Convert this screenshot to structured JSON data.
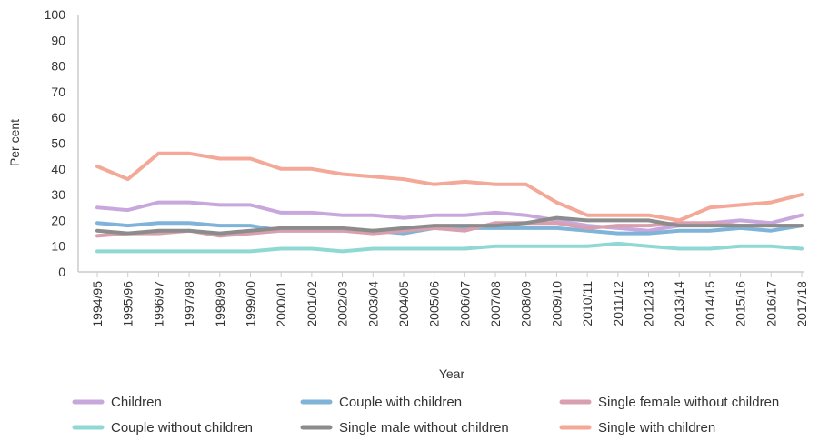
{
  "chart_data": {
    "type": "line",
    "title": "",
    "xlabel": "Year",
    "ylabel": "Per cent",
    "ylim": [
      0,
      100
    ],
    "yticks": [
      0,
      10,
      20,
      30,
      40,
      50,
      60,
      70,
      80,
      90,
      100
    ],
    "grid": false,
    "legend_position": "bottom",
    "categories": [
      "1994/95",
      "1995/96",
      "1996/97",
      "1997/98",
      "1998/99",
      "1999/00",
      "2000/01",
      "2001/02",
      "2002/03",
      "2003/04",
      "2004/05",
      "2005/06",
      "2006/07",
      "2007/08",
      "2008/09",
      "2009/10",
      "2010/11",
      "2011/12",
      "2012/13",
      "2013/14",
      "2014/15",
      "2015/16",
      "2016/17",
      "2017/18"
    ],
    "series": [
      {
        "name": "Children",
        "color": "#c8a8dc",
        "values": [
          25,
          24,
          27,
          27,
          26,
          26,
          23,
          23,
          22,
          22,
          21,
          22,
          22,
          23,
          22,
          20,
          18,
          17,
          16,
          18,
          19,
          20,
          19,
          22
        ]
      },
      {
        "name": "Couple with children",
        "color": "#7fb4d8",
        "values": [
          19,
          18,
          19,
          19,
          18,
          18,
          16,
          16,
          16,
          16,
          15,
          17,
          17,
          17,
          17,
          17,
          16,
          15,
          15,
          16,
          16,
          17,
          16,
          18
        ]
      },
      {
        "name": "Single female without children",
        "color": "#d8a0ae",
        "values": [
          14,
          15,
          15,
          16,
          14,
          15,
          16,
          16,
          16,
          15,
          16,
          17,
          16,
          19,
          19,
          19,
          17,
          18,
          18,
          19,
          19,
          18,
          18,
          18
        ]
      },
      {
        "name": "Couple without children",
        "color": "#8fd8d4",
        "values": [
          8,
          8,
          8,
          8,
          8,
          8,
          9,
          9,
          8,
          9,
          9,
          9,
          9,
          10,
          10,
          10,
          10,
          11,
          10,
          9,
          9,
          10,
          10,
          9
        ]
      },
      {
        "name": "Single male without children",
        "color": "#8c8c8c",
        "values": [
          16,
          15,
          16,
          16,
          15,
          16,
          17,
          17,
          17,
          16,
          17,
          18,
          18,
          18,
          19,
          21,
          20,
          20,
          20,
          18,
          18,
          18,
          18,
          18
        ]
      },
      {
        "name": "Single with children",
        "color": "#f4a898",
        "values": [
          41,
          36,
          46,
          46,
          44,
          44,
          40,
          40,
          38,
          37,
          36,
          34,
          35,
          34,
          34,
          27,
          22,
          22,
          22,
          20,
          25,
          26,
          27,
          30
        ]
      }
    ]
  }
}
